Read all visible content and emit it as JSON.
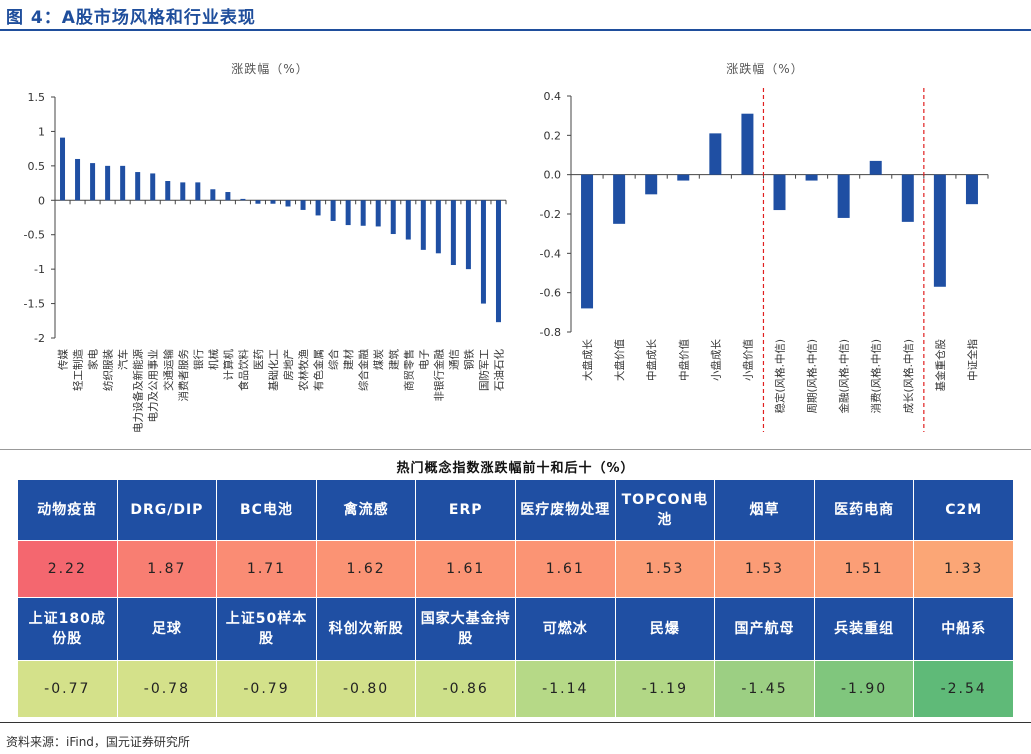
{
  "figure_title": "图 4：A股市场风格和行业表现",
  "chart_data": [
    {
      "type": "bar",
      "title": "涨跌幅（%）",
      "ylim": [
        -2,
        1.5
      ],
      "yticks": [
        1.5,
        1,
        0.5,
        0,
        -0.5,
        -1,
        -1.5,
        -2
      ],
      "ytick_labels": [
        "1.5",
        "1",
        "0.5",
        "0",
        "-0.5",
        "-1",
        "-1.5",
        "-2"
      ],
      "categories": [
        "传媒",
        "轻工制造",
        "家电",
        "纺织服装",
        "汽车",
        "电力设备及新能源",
        "电力及公用事业",
        "交通运输",
        "消费者服务",
        "银行",
        "机械",
        "计算机",
        "食品饮料",
        "医药",
        "基础化工",
        "房地产",
        "农林牧渔",
        "有色金属",
        "综合",
        "建材",
        "综合金融",
        "煤炭",
        "建筑",
        "商贸零售",
        "电子",
        "非银行金融",
        "通信",
        "钢铁",
        "国防军工",
        "石油石化"
      ],
      "values": [
        0.91,
        0.6,
        0.54,
        0.5,
        0.5,
        0.41,
        0.39,
        0.28,
        0.26,
        0.26,
        0.16,
        0.12,
        0.02,
        -0.05,
        -0.05,
        -0.09,
        -0.14,
        -0.22,
        -0.3,
        -0.36,
        -0.37,
        -0.38,
        -0.49,
        -0.57,
        -0.72,
        -0.77,
        -0.94,
        -1.0,
        -1.5,
        -1.77
      ]
    },
    {
      "type": "bar",
      "title": "涨跌幅（%）",
      "ylim": [
        -0.8,
        0.4
      ],
      "yticks": [
        0.4,
        0.2,
        0.0,
        -0.2,
        -0.4,
        -0.6,
        -0.8
      ],
      "ytick_labels": [
        "0.4",
        "0.2",
        "0.0",
        "-0.2",
        "-0.4",
        "-0.6",
        "-0.8"
      ],
      "categories": [
        "大盘成长",
        "大盘价值",
        "中盘成长",
        "中盘价值",
        "小盘成长",
        "小盘价值",
        "稳定(风格.中信)",
        "周期(风格.中信)",
        "金融(风格.中信)",
        "消费(风格.中信)",
        "成长(风格.中信)",
        "基金重仓股",
        "中证全指"
      ],
      "values": [
        -0.68,
        -0.25,
        -0.1,
        -0.03,
        0.21,
        0.31,
        -0.18,
        -0.03,
        -0.22,
        0.07,
        -0.24,
        -0.57,
        -0.15
      ],
      "separator_after": [
        6,
        11
      ]
    }
  ],
  "table": {
    "title": "热门概念指数涨跌幅前十和后十（%）",
    "top_names": [
      "动物疫苗",
      "DRG/DIP",
      "BC电池",
      "禽流感",
      "ERP",
      "医疗废物处理",
      "TOPCON电池",
      "烟草",
      "医药电商",
      "C2M"
    ],
    "top_values": [
      "2.22",
      "1.87",
      "1.71",
      "1.62",
      "1.61",
      "1.61",
      "1.53",
      "1.53",
      "1.51",
      "1.33"
    ],
    "bottom_names": [
      "上证180成份股",
      "足球",
      "上证50样本股",
      "科创次新股",
      "国家大基金持股",
      "可燃冰",
      "民爆",
      "国产航母",
      "兵装重组",
      "中船系"
    ],
    "bottom_values": [
      "-0.77",
      "-0.78",
      "-0.79",
      "-0.80",
      "-0.86",
      "-1.14",
      "-1.19",
      "-1.45",
      "-1.90",
      "-2.54"
    ],
    "top_colors": [
      "#f4676f",
      "#f87e72",
      "#fa8c74",
      "#fb9374",
      "#fb9474",
      "#fb9474",
      "#fb9c76",
      "#fb9c76",
      "#fb9e76",
      "#fba676"
    ],
    "bottom_colors": [
      "#d4e18a",
      "#d4e18a",
      "#d3e18a",
      "#d2e08a",
      "#cde08a",
      "#b6d987",
      "#b2d786",
      "#9ccf83",
      "#80c67d",
      "#5fba78"
    ]
  },
  "source": "资料来源：iFind，国元证券研究所",
  "colors": {
    "bar": "#1f4fa3",
    "separator": "#e02020"
  }
}
